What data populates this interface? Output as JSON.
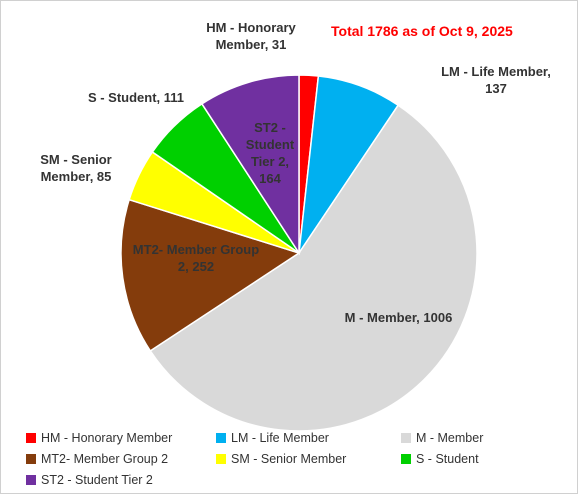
{
  "chart_data": {
    "type": "pie",
    "title": "Total 1786 as of Oct 9, 2025",
    "categories": [
      "HM - Honorary Member",
      "LM - Life Member",
      "M - Member",
      "MT2- Member Group 2",
      "SM - Senior Member",
      "S - Student",
      "ST2 - Student Tier 2"
    ],
    "values": [
      31,
      137,
      1006,
      252,
      85,
      111,
      164
    ],
    "value_labels": [
      "HM - Honorary Member, 31",
      "LM - Life Member, 137",
      "M - Member, 1006",
      "MT2- Member Group 2, 252",
      "SM - Senior Member, 85",
      "S - Student, 111",
      "ST2 - Student Tier 2, 164"
    ],
    "colors": [
      "#ff0000",
      "#00b0f0",
      "#d9d9d9",
      "#843c0c",
      "#ffff00",
      "#00d000",
      "#7030a0"
    ],
    "legend": "bottom"
  }
}
